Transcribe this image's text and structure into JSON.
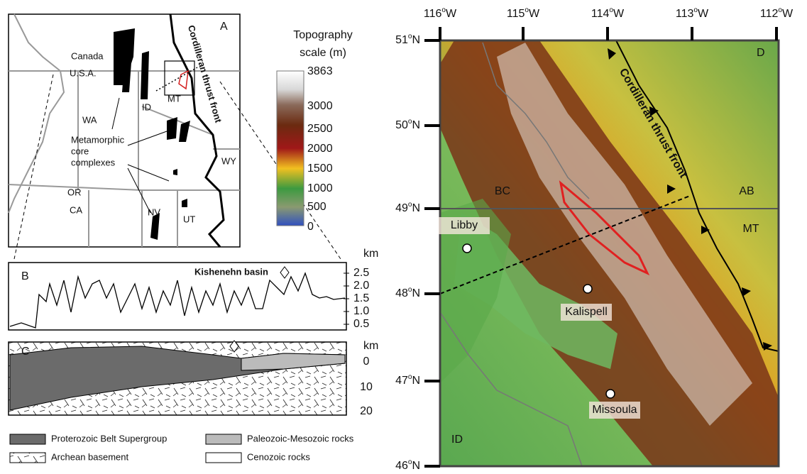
{
  "panel_a": {
    "label": "A",
    "places": [
      "Canada",
      "U.S.A.",
      "WA",
      "ID",
      "MT",
      "OR",
      "CA",
      "NV",
      "UT",
      "WY"
    ],
    "core_complexes": [
      "Metamorphic",
      "core",
      "complexes"
    ],
    "thrust_front": "Cordilleran thrust front"
  },
  "topography_scale": {
    "title": [
      "Topography",
      "scale (m)"
    ],
    "ticks": [
      "3863",
      "3000",
      "2500",
      "2000",
      "1500",
      "1000",
      "500",
      "0"
    ]
  },
  "panel_b": {
    "label": "B",
    "unit": "km",
    "ticks": [
      "2.5",
      "2.0",
      "1.5",
      "1.0",
      "0.5"
    ],
    "annotation": "Kishenehn basin"
  },
  "panel_c": {
    "label": "C",
    "unit": "km",
    "ticks": [
      "0",
      "10",
      "20"
    ]
  },
  "legend": [
    "Proterozoic Belt Supergroup",
    "Paleozoic-Mesozoic rocks",
    "Archean basement",
    "Cenozoic rocks"
  ],
  "panel_d": {
    "label": "D",
    "longitudes": [
      {
        "num": "116",
        "deg": "o",
        "hemi": "W"
      },
      {
        "num": "115",
        "deg": "o",
        "hemi": "W"
      },
      {
        "num": "114",
        "deg": "o",
        "hemi": "W"
      },
      {
        "num": "113",
        "deg": "o",
        "hemi": "W"
      },
      {
        "num": "112",
        "deg": "o",
        "hemi": "W"
      }
    ],
    "latitudes": [
      {
        "num": "51",
        "deg": "o",
        "hemi": "N"
      },
      {
        "num": "50",
        "deg": "o",
        "hemi": "N"
      },
      {
        "num": "49",
        "deg": "o",
        "hemi": "N"
      },
      {
        "num": "48",
        "deg": "o",
        "hemi": "N"
      },
      {
        "num": "47",
        "deg": "o",
        "hemi": "N"
      },
      {
        "num": "46",
        "deg": "o",
        "hemi": "N"
      }
    ],
    "places": [
      "BC",
      "AB",
      "MT",
      "ID"
    ],
    "cities": [
      "Libby",
      "Kalispell",
      "Missoula"
    ],
    "thrust_front": "Cordilleran thrust front"
  }
}
